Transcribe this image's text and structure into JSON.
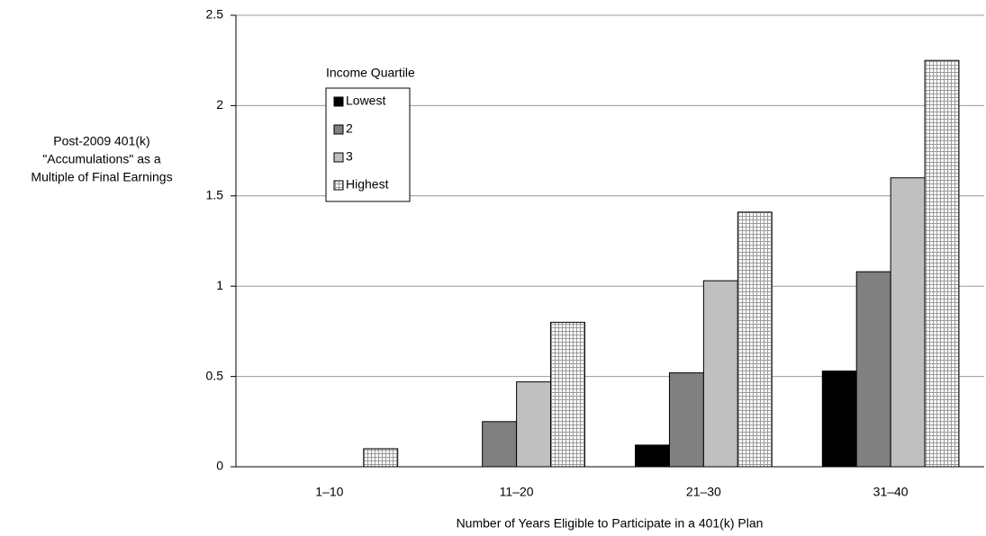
{
  "chart_data": {
    "type": "bar",
    "y_label": [
      "Post-2009 401(k)",
      "\"Accumulations\" as a",
      "Multiple of Final Earnings"
    ],
    "x_label": "Number of Years Eligible to Participate in a 401(k) Plan",
    "legend_title": "Income Quartile",
    "categories": [
      "1–10",
      "11–20",
      "21–30",
      "31–40"
    ],
    "series": [
      {
        "name": "Lowest",
        "color": "#000000",
        "values": [
          0,
          0,
          0.12,
          0.53
        ]
      },
      {
        "name": "2",
        "color": "#808080",
        "values": [
          0,
          0.25,
          0.52,
          1.08
        ]
      },
      {
        "name": "3",
        "color": "#c0c0c0",
        "values": [
          0,
          0.47,
          1.03,
          1.6
        ]
      },
      {
        "name": "Highest",
        "color": "#ffffff",
        "pattern": "grid",
        "values": [
          0.1,
          0.8,
          1.41,
          2.25
        ]
      }
    ],
    "ylim": [
      0,
      2.5
    ],
    "yticks": [
      0,
      0.5,
      1,
      1.5,
      2,
      2.5
    ],
    "grid": true
  }
}
